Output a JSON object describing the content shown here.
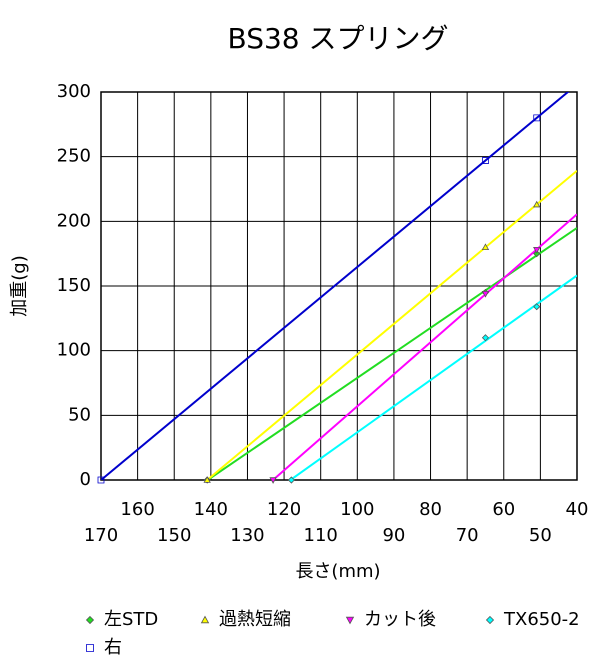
{
  "chart_data": {
    "type": "scatter",
    "title": "BS38 スプリング",
    "x_label": "長さ(mm)",
    "y_label": "加重(g)",
    "xlim": [
      170,
      40
    ],
    "ylim": [
      0,
      300
    ],
    "xticks": [
      170,
      160,
      150,
      140,
      130,
      120,
      110,
      100,
      90,
      80,
      70,
      60,
      50,
      40
    ],
    "yticks": [
      0,
      50,
      100,
      150,
      200,
      250,
      300
    ],
    "grid": true,
    "trendline": "linear",
    "series": [
      {
        "name": "左STD",
        "color": "#22dd22",
        "marker": "diamond",
        "x": [
          141,
          65,
          51
        ],
        "values": [
          0,
          145,
          175
        ]
      },
      {
        "name": "過熱短縮",
        "color": "#ffff00",
        "marker": "triangle",
        "x": [
          141,
          65,
          51
        ],
        "values": [
          0,
          180,
          213
        ]
      },
      {
        "name": "カット後",
        "color": "#ff00ff",
        "marker": "triangle-down",
        "x": [
          123,
          65,
          51
        ],
        "values": [
          0,
          144,
          178
        ]
      },
      {
        "name": "TX650-2",
        "color": "#00ffff",
        "marker": "diamond",
        "x": [
          118,
          65,
          51
        ],
        "values": [
          0,
          110,
          134
        ]
      },
      {
        "name": "右",
        "color": "#0000cc",
        "marker": "square",
        "x": [
          170,
          65,
          51
        ],
        "values": [
          0,
          247,
          280
        ]
      }
    ]
  }
}
